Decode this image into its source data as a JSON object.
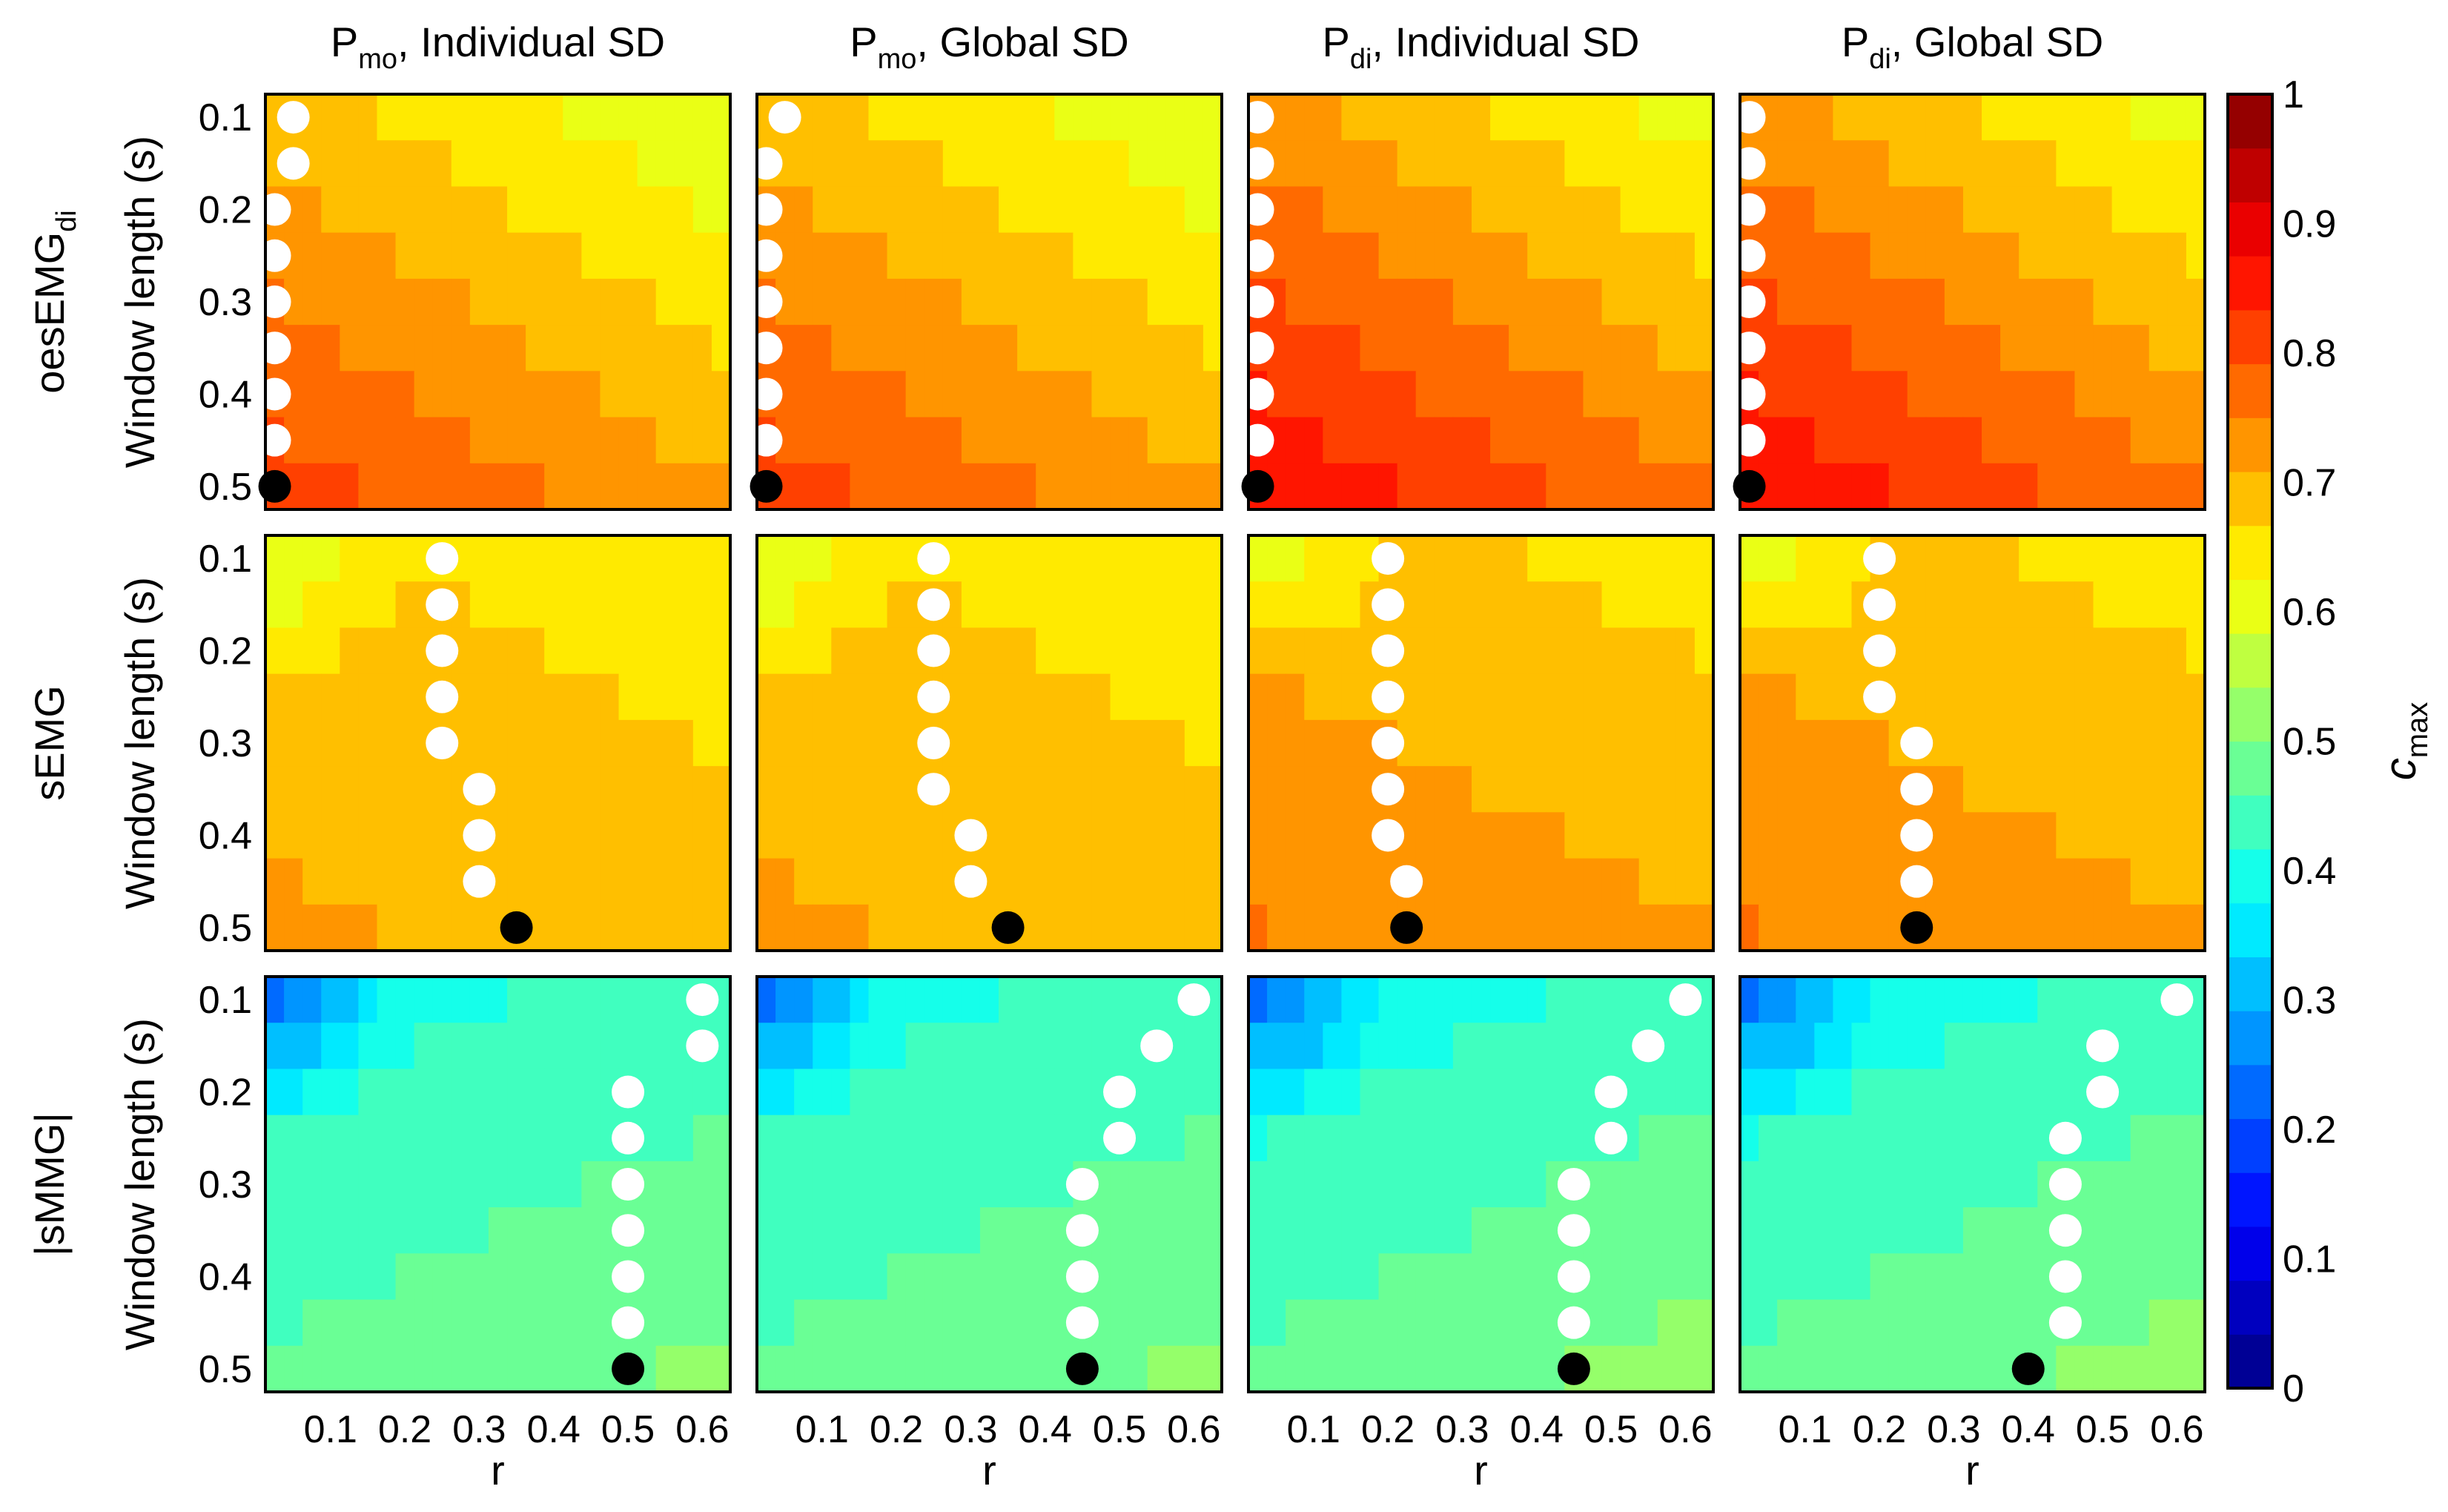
{
  "chart_data": {
    "type": "heatmap",
    "grid": {
      "rows": 3,
      "cols": 4
    },
    "column_titles": [
      {
        "main": "P",
        "sub": "mo",
        "rest": ", Individual SD"
      },
      {
        "main": "P",
        "sub": "mo",
        "rest": ", Global SD"
      },
      {
        "main": "P",
        "sub": "di",
        "rest": ", Individual SD"
      },
      {
        "main": "P",
        "sub": "di",
        "rest": ", Global SD"
      }
    ],
    "row_titles": [
      {
        "main": "oesEMG",
        "sub": "di"
      },
      {
        "main": "sEMG",
        "sub": ""
      },
      {
        "main": "|sMMG|",
        "sub": ""
      }
    ],
    "ylabel": "Window length (s)",
    "xlabel": "r",
    "x_values": [
      0.025,
      0.05,
      0.075,
      0.1,
      0.125,
      0.15,
      0.175,
      0.2,
      0.225,
      0.25,
      0.275,
      0.3,
      0.325,
      0.35,
      0.375,
      0.4,
      0.425,
      0.45,
      0.475,
      0.5,
      0.525,
      0.55,
      0.575,
      0.6,
      0.625
    ],
    "y_values": [
      0.1,
      0.15,
      0.2,
      0.25,
      0.3,
      0.35,
      0.4,
      0.45,
      0.5
    ],
    "xlim": [
      0.0125,
      0.6375
    ],
    "ylim": [
      0.075,
      0.525
    ],
    "x_ticks": [
      0.1,
      0.2,
      0.3,
      0.4,
      0.5,
      0.6
    ],
    "x_tick_labels": [
      "0.1",
      "0.2",
      "0.3",
      "0.4",
      "0.5",
      "0.6"
    ],
    "y_ticks": [
      0.1,
      0.2,
      0.3,
      0.4,
      0.5
    ],
    "y_tick_labels": [
      "0.1",
      "0.2",
      "0.3",
      "0.4",
      "0.5"
    ],
    "colorbar": {
      "label_main": "c",
      "label_sub": "max",
      "range": [
        0,
        1
      ],
      "levels": 24,
      "ticks": [
        0,
        0.1,
        0.2,
        0.3,
        0.4,
        0.5,
        0.6,
        0.7,
        0.8,
        0.9,
        1
      ],
      "tick_labels": [
        "0",
        "0.1",
        "0.2",
        "0.3",
        "0.4",
        "0.5",
        "0.6",
        "0.7",
        "0.8",
        "0.9",
        "1"
      ]
    },
    "panels": [
      {
        "row": 0,
        "col": 0,
        "name": "oesEMGdi Pmo Individual SD",
        "base_value": 0.7,
        "y_gain": 0.12,
        "x_drop": 0.1,
        "corner_bump": 0.0,
        "optimal_r": [
          0.05,
          0.05,
          0.025,
          0.025,
          0.025,
          0.025,
          0.025,
          0.025,
          0.025
        ]
      },
      {
        "row": 0,
        "col": 1,
        "name": "oesEMGdi Pmo Global SD",
        "base_value": 0.7,
        "y_gain": 0.12,
        "x_drop": 0.1,
        "corner_bump": 0.0,
        "optimal_r": [
          0.05,
          0.025,
          0.025,
          0.025,
          0.025,
          0.025,
          0.025,
          0.025,
          0.025
        ]
      },
      {
        "row": 0,
        "col": 2,
        "name": "oesEMGdi Pdi Individual SD",
        "base_value": 0.74,
        "y_gain": 0.14,
        "x_drop": 0.12,
        "corner_bump": 0.0,
        "optimal_r": [
          0.025,
          0.025,
          0.025,
          0.025,
          0.025,
          0.025,
          0.025,
          0.025,
          0.025
        ]
      },
      {
        "row": 0,
        "col": 3,
        "name": "oesEMGdi Pdi Global SD",
        "base_value": 0.74,
        "y_gain": 0.14,
        "x_drop": 0.12,
        "corner_bump": 0.0,
        "optimal_r": [
          0.025,
          0.025,
          0.025,
          0.025,
          0.025,
          0.025,
          0.025,
          0.025,
          0.025
        ]
      },
      {
        "row": 1,
        "col": 0,
        "name": "sEMG Pmo Individual SD",
        "base_value": 0.68,
        "y_gain": 0.04,
        "x_drop": 0.03,
        "corner_bump": -0.09,
        "optimal_r": [
          0.25,
          0.25,
          0.25,
          0.25,
          0.25,
          0.3,
          0.3,
          0.3,
          0.35
        ]
      },
      {
        "row": 1,
        "col": 1,
        "name": "sEMG Pmo Global SD",
        "base_value": 0.68,
        "y_gain": 0.04,
        "x_drop": 0.03,
        "corner_bump": -0.09,
        "optimal_r": [
          0.25,
          0.25,
          0.25,
          0.25,
          0.25,
          0.25,
          0.3,
          0.3,
          0.35
        ]
      },
      {
        "row": 1,
        "col": 2,
        "name": "sEMG Pdi Individual SD",
        "base_value": 0.7,
        "y_gain": 0.06,
        "x_drop": 0.04,
        "corner_bump": -0.1,
        "optimal_r": [
          0.2,
          0.2,
          0.2,
          0.2,
          0.2,
          0.2,
          0.2,
          0.225,
          0.225
        ]
      },
      {
        "row": 1,
        "col": 3,
        "name": "sEMG Pdi Global SD",
        "base_value": 0.7,
        "y_gain": 0.06,
        "x_drop": 0.04,
        "corner_bump": -0.1,
        "optimal_r": [
          0.2,
          0.2,
          0.2,
          0.2,
          0.25,
          0.25,
          0.25,
          0.25,
          0.25
        ]
      },
      {
        "row": 2,
        "col": 0,
        "name": "|sMMG| Pmo Individual SD",
        "base_value": 0.45,
        "y_gain": 0.07,
        "x_drop": -0.04,
        "corner_bump": -0.15,
        "optimal_r": [
          0.6,
          0.6,
          0.5,
          0.5,
          0.5,
          0.5,
          0.5,
          0.5,
          0.5
        ]
      },
      {
        "row": 2,
        "col": 1,
        "name": "|sMMG| Pmo Global SD",
        "base_value": 0.45,
        "y_gain": 0.07,
        "x_drop": -0.04,
        "corner_bump": -0.15,
        "optimal_r": [
          0.6,
          0.55,
          0.5,
          0.5,
          0.45,
          0.45,
          0.45,
          0.45,
          0.45
        ]
      },
      {
        "row": 2,
        "col": 2,
        "name": "|sMMG| Pdi Individual SD",
        "base_value": 0.45,
        "y_gain": 0.08,
        "x_drop": -0.05,
        "corner_bump": -0.15,
        "optimal_r": [
          0.6,
          0.55,
          0.5,
          0.5,
          0.45,
          0.45,
          0.45,
          0.45,
          0.45
        ]
      },
      {
        "row": 2,
        "col": 3,
        "name": "|sMMG| Pdi Global SD",
        "base_value": 0.45,
        "y_gain": 0.08,
        "x_drop": -0.05,
        "corner_bump": -0.15,
        "optimal_r": [
          0.6,
          0.5,
          0.5,
          0.45,
          0.45,
          0.45,
          0.45,
          0.45,
          0.4
        ]
      }
    ],
    "markers": {
      "optimal_color": "#ffffff",
      "global_optimum_color": "#000000"
    }
  }
}
